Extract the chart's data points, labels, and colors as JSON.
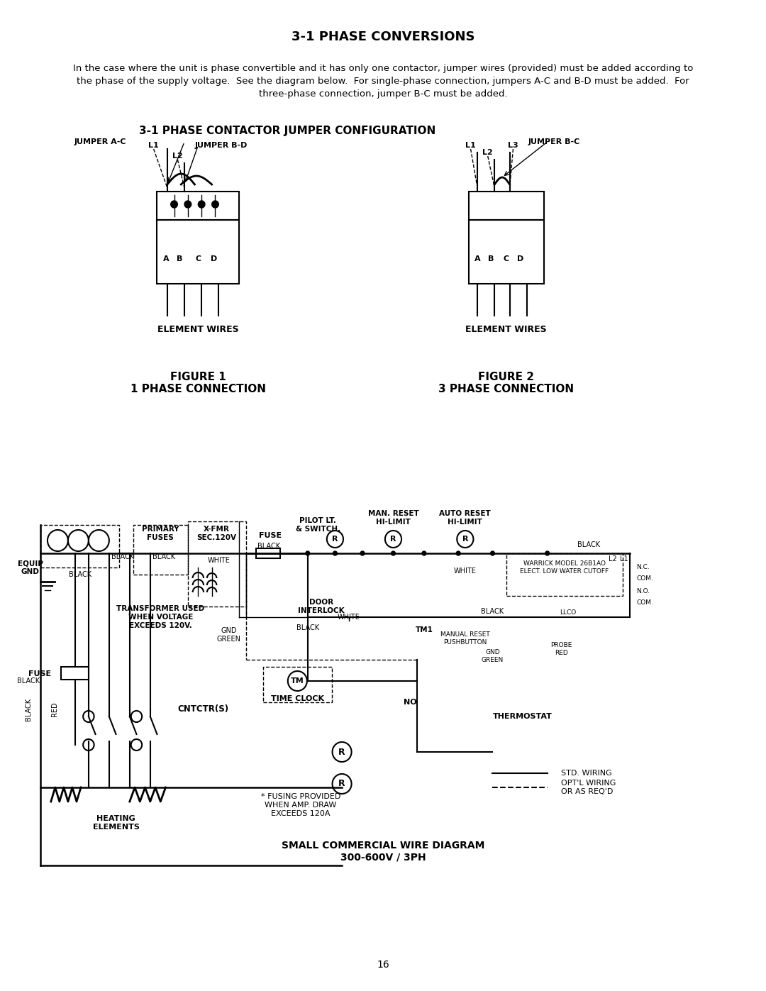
{
  "title": "3-1 PHASE CONVERSIONS",
  "body_text": "In the case where the unit is phase convertible and it has only one contactor, jumper wires (provided) must be added according to\nthe phase of the supply voltage.  See the diagram below.  For single-phase connection, jumpers A-C and B-D must be added.  For\nthree-phase connection, jumper B-C must be added.",
  "diagram_title": "3-1 PHASE CONTACTOR JUMPER CONFIGURATION",
  "fig1_label": "FIGURE 1\n1 PHASE CONNECTION",
  "fig2_label": "FIGURE 2\n3 PHASE CONNECTION",
  "fig1_jumper1": "JUMPER A-C",
  "fig1_jumper2": "JUMPER B-D",
  "fig2_jumper": "JUMPER B-C",
  "fig1_lines": "ELEMENT WIRES",
  "fig2_lines": "ELEMENT WIRES",
  "wire_diagram_title": "SMALL COMMERCIAL WIRE DIAGRAM\n300-600V / 3PH",
  "page_number": "16",
  "bg_color": "#ffffff",
  "text_color": "#000000"
}
